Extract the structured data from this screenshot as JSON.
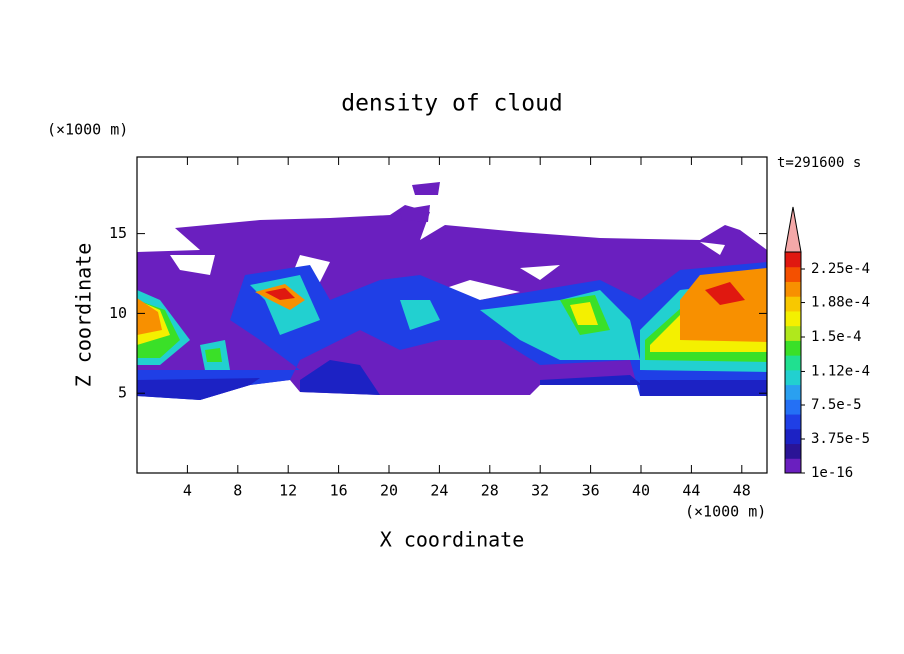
{
  "chart_data": {
    "type": "contour",
    "title": "density of cloud",
    "x_label": "X coordinate",
    "y_label": "Z coordinate",
    "x_unit": "(×1000 m)",
    "y_unit": "(×1000 m)",
    "annotation": "t=291600 s",
    "xlim": [
      0,
      50
    ],
    "xticks": [
      4,
      8,
      12,
      16,
      20,
      24,
      28,
      32,
      36,
      40,
      44,
      48
    ],
    "ylim": [
      0,
      19.8
    ],
    "yticks": [
      5,
      10,
      15
    ],
    "colorbar": {
      "clim": [
        0,
        0.00024375
      ],
      "ticks": [
        {
          "value": 1e-16,
          "label": "1e-16"
        },
        {
          "value": 3.75e-05,
          "label": "3.75e-5"
        },
        {
          "value": 7.5e-05,
          "label": "7.5e-5"
        },
        {
          "value": 0.000112,
          "label": "1.12e-4"
        },
        {
          "value": 0.00015,
          "label": "1.5e-4"
        },
        {
          "value": 0.000188,
          "label": "1.88e-4"
        },
        {
          "value": 0.000225,
          "label": "2.25e-4"
        }
      ],
      "colors": [
        "#6a1fbf",
        "#2a1496",
        "#1c22c4",
        "#1f3fe6",
        "#2470f5",
        "#2aa0f0",
        "#22d0d0",
        "#20e090",
        "#3ae028",
        "#b0e81c",
        "#f4f000",
        "#f8c800",
        "#f89000",
        "#f45000",
        "#e01810"
      ],
      "extend_color": "#f4a8a8"
    }
  }
}
